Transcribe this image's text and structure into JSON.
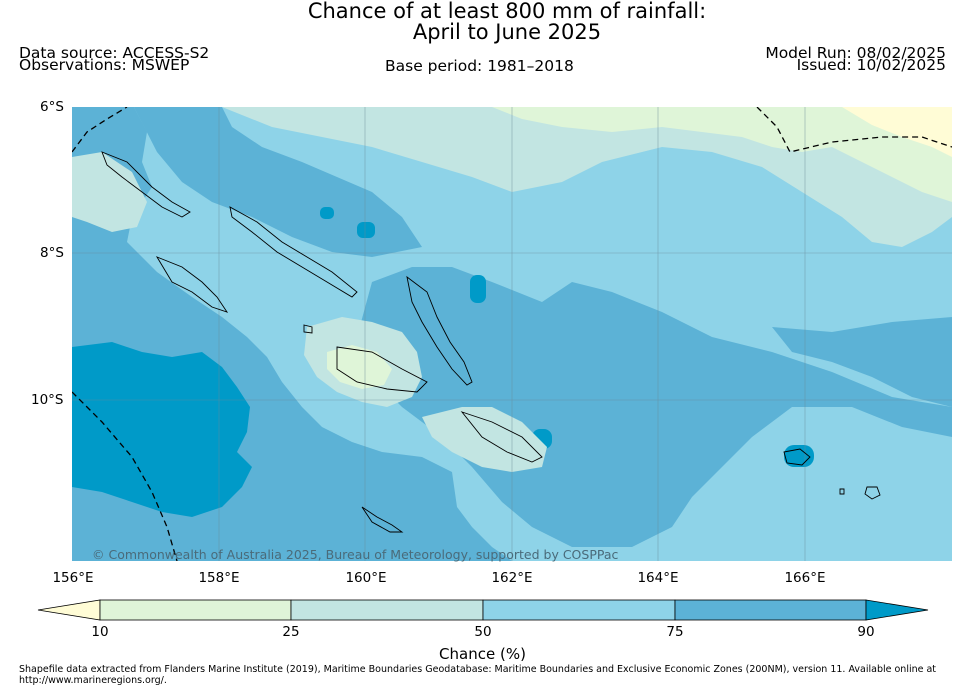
{
  "title": {
    "line1": "Chance of at least 800 mm of rainfall:",
    "line2": "April to June 2025"
  },
  "info": {
    "data_source": "Data source: ACCESS-S2",
    "observations": "Observations: MSWEP",
    "base_period": "Base period: 1981–2018",
    "model_run": "Model Run: 08/02/2025",
    "issued": "Issued: 10/02/2025"
  },
  "map": {
    "lat_labels": [
      "6°S",
      "8°S",
      "10°S"
    ],
    "lon_labels": [
      "156°E",
      "158°E",
      "160°E",
      "162°E",
      "164°E",
      "166°E"
    ],
    "copyright": "© Commonwealth of Australia 2025, Bureau of Meteorology, supported by COSPPac",
    "colors": {
      "below_10": "#fffcd6",
      "10_25": "#dff5d8",
      "25_50": "#c2e5e2",
      "50_75": "#8ed3e8",
      "75_90": "#5cb2d6",
      "above_90": "#009ac8"
    }
  },
  "colorbar": {
    "ticks": [
      "10",
      "25",
      "50",
      "75",
      "90"
    ],
    "label": "Chance (%)"
  },
  "footnote": "Shapefile data extracted from Flanders Marine Institute (2019), Maritime Boundaries Geodatabase: Maritime Boundaries and Exclusive Economic Zones (200NM), version 11. Available online at http://www.marineregions.org/."
}
